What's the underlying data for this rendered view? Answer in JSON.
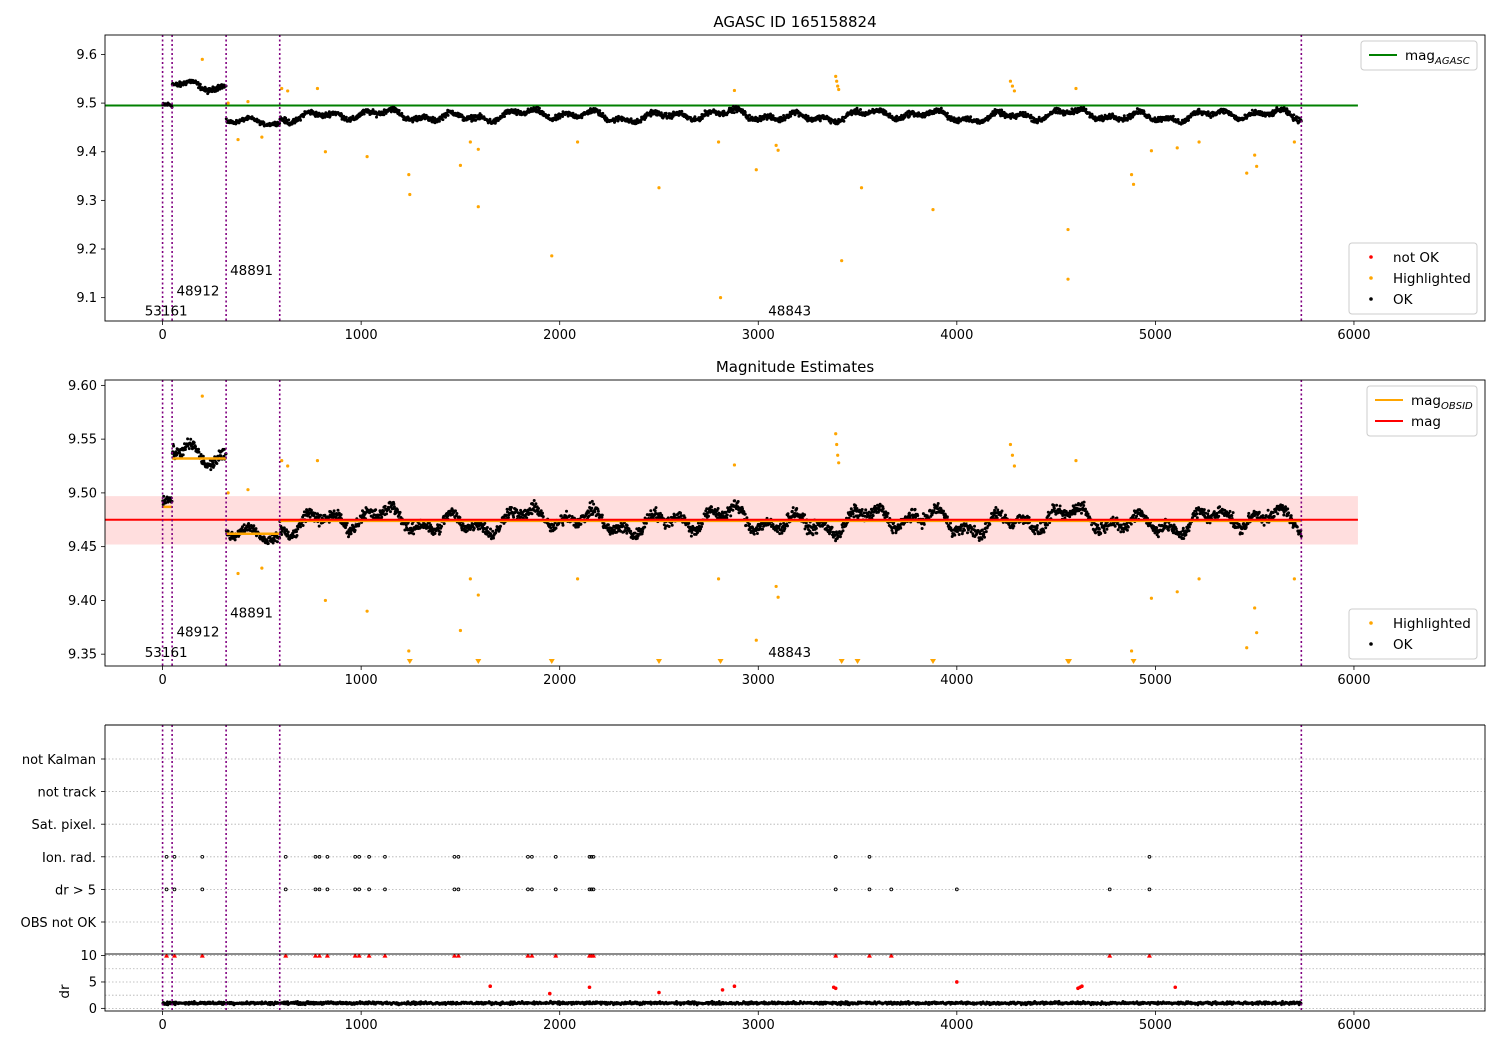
{
  "figure": {
    "vlines": [
      0,
      48,
      320,
      590,
      5735
    ],
    "vline_color": "#800080",
    "colors": {
      "ok": "#000000",
      "highlighted": "#ffa500",
      "not_ok": "#ff0000",
      "agasc": "#008000",
      "mag": "#ff0000",
      "mag_obsid": "#ffa500",
      "band": "#ffcccc"
    }
  },
  "chart_data": [
    {
      "type": "scatter",
      "title": "AGASC ID 165158824",
      "xlabel": "",
      "ylabel": "",
      "xlim": [
        -290,
        6660
      ],
      "ylim": [
        9.052,
        9.64
      ],
      "xticks": [
        0,
        1000,
        2000,
        3000,
        4000,
        5000,
        6000
      ],
      "yticks": [
        9.1,
        9.2,
        9.3,
        9.4,
        9.5,
        9.6
      ],
      "y_decimals": 1,
      "grid": false,
      "legend_top": {
        "position": "upper-right",
        "entries": [
          {
            "label": "mag",
            "sub": "AGASC",
            "type": "line",
            "color": "#008000"
          }
        ]
      },
      "legend_bottom": {
        "position": "lower-right",
        "entries": [
          {
            "label": "not OK",
            "type": "dot",
            "color": "#ff0000"
          },
          {
            "label": "Highlighted",
            "type": "dot",
            "color": "#ffa500"
          },
          {
            "label": "OK",
            "type": "dot",
            "color": "#000000"
          }
        ]
      },
      "hlines": [
        {
          "y": 9.495,
          "x0": -290,
          "x1": 6020,
          "color": "#008000",
          "label": "mag AGASC"
        }
      ],
      "obsid_labels": [
        {
          "text": "53161",
          "x": -90,
          "y": 9.072
        },
        {
          "text": "48912",
          "x": 70,
          "y": 9.113
        },
        {
          "text": "48891",
          "x": 340,
          "y": 9.155
        },
        {
          "text": "48843",
          "x": 3050,
          "y": 9.072
        }
      ],
      "ok_segments": [
        {
          "x0": 0,
          "x1": 48,
          "y": 9.49,
          "spread": 0.012
        },
        {
          "x0": 48,
          "x1": 320,
          "y": 9.532,
          "spread": 0.015
        },
        {
          "x0": 320,
          "x1": 590,
          "y": 9.462,
          "spread": 0.01
        },
        {
          "x0": 590,
          "x1": 5735,
          "y": 9.474,
          "spread": 0.015
        }
      ],
      "highlighted_points": [
        [
          200,
          9.59
        ],
        [
          330,
          9.5
        ],
        [
          380,
          9.425
        ],
        [
          430,
          9.503
        ],
        [
          500,
          9.43
        ],
        [
          600,
          9.53
        ],
        [
          630,
          9.525
        ],
        [
          780,
          9.53
        ],
        [
          820,
          9.4
        ],
        [
          1030,
          9.39
        ],
        [
          1240,
          9.353
        ],
        [
          1245,
          9.312
        ],
        [
          1500,
          9.372
        ],
        [
          1550,
          9.42
        ],
        [
          1590,
          9.405
        ],
        [
          1590,
          9.287
        ],
        [
          1960,
          9.186
        ],
        [
          2090,
          9.42
        ],
        [
          2500,
          9.326
        ],
        [
          2800,
          9.42
        ],
        [
          2810,
          9.1
        ],
        [
          2880,
          9.526
        ],
        [
          2990,
          9.363
        ],
        [
          3090,
          9.413
        ],
        [
          3100,
          9.403
        ],
        [
          3390,
          9.555
        ],
        [
          3395,
          9.545
        ],
        [
          3400,
          9.535
        ],
        [
          3405,
          9.528
        ],
        [
          3420,
          9.176
        ],
        [
          3520,
          9.326
        ],
        [
          3880,
          9.281
        ],
        [
          4270,
          9.545
        ],
        [
          4280,
          9.535
        ],
        [
          4290,
          9.525
        ],
        [
          4560,
          9.24
        ],
        [
          4560,
          9.138
        ],
        [
          4600,
          9.53
        ],
        [
          4880,
          9.353
        ],
        [
          4890,
          9.333
        ],
        [
          4980,
          9.402
        ],
        [
          5110,
          9.408
        ],
        [
          5220,
          9.42
        ],
        [
          5460,
          9.356
        ],
        [
          5500,
          9.393
        ],
        [
          5510,
          9.37
        ],
        [
          5700,
          9.42
        ]
      ],
      "not_ok_points": []
    },
    {
      "type": "scatter",
      "title": "Magnitude Estimates",
      "xlabel": "",
      "ylabel": "",
      "xlim": [
        -290,
        6660
      ],
      "ylim": [
        9.339,
        9.605
      ],
      "xticks": [
        0,
        1000,
        2000,
        3000,
        4000,
        5000,
        6000
      ],
      "yticks": [
        9.35,
        9.4,
        9.45,
        9.5,
        9.55,
        9.6
      ],
      "y_decimals": 2,
      "grid": false,
      "legend_top": {
        "position": "upper-right",
        "entries": [
          {
            "label": "mag",
            "sub": "OBSID",
            "type": "line",
            "color": "#ffa500"
          },
          {
            "label": "mag",
            "sub": "",
            "type": "line",
            "color": "#ff0000"
          }
        ]
      },
      "legend_bottom": {
        "position": "lower-right",
        "entries": [
          {
            "label": "Highlighted",
            "type": "dot",
            "color": "#ffa500"
          },
          {
            "label": "OK",
            "type": "dot",
            "color": "#000000"
          }
        ]
      },
      "band": {
        "y0": 9.452,
        "y1": 9.497,
        "x0": -290,
        "x1": 6020,
        "color": "#ffcccc"
      },
      "hlines": [
        {
          "y": 9.475,
          "x0": -290,
          "x1": 6020,
          "color": "#ff0000",
          "label": "mag"
        }
      ],
      "obsid_segments": [
        {
          "x0": 0,
          "x1": 48,
          "y": 9.487
        },
        {
          "x0": 48,
          "x1": 320,
          "y": 9.532
        },
        {
          "x0": 320,
          "x1": 590,
          "y": 9.462
        },
        {
          "x0": 590,
          "x1": 5735,
          "y": 9.474
        }
      ],
      "obsid_labels": [
        {
          "text": "53161",
          "x": -90,
          "y": 9.351
        },
        {
          "text": "48912",
          "x": 70,
          "y": 9.37
        },
        {
          "text": "48891",
          "x": 340,
          "y": 9.388
        },
        {
          "text": "48843",
          "x": 3050,
          "y": 9.351
        }
      ],
      "ok_segments": [
        {
          "x0": 0,
          "x1": 48,
          "y": 9.487,
          "spread": 0.012
        },
        {
          "x0": 48,
          "x1": 320,
          "y": 9.532,
          "spread": 0.015
        },
        {
          "x0": 320,
          "x1": 590,
          "y": 9.462,
          "spread": 0.01
        },
        {
          "x0": 590,
          "x1": 5735,
          "y": 9.474,
          "spread": 0.015
        }
      ],
      "highlighted_points": [
        [
          200,
          9.59
        ],
        [
          330,
          9.5
        ],
        [
          380,
          9.425
        ],
        [
          430,
          9.503
        ],
        [
          500,
          9.43
        ],
        [
          600,
          9.53
        ],
        [
          630,
          9.525
        ],
        [
          780,
          9.53
        ],
        [
          820,
          9.4
        ],
        [
          1030,
          9.39
        ],
        [
          1240,
          9.353
        ],
        [
          1500,
          9.372
        ],
        [
          1550,
          9.42
        ],
        [
          1590,
          9.405
        ],
        [
          2090,
          9.42
        ],
        [
          2800,
          9.42
        ],
        [
          2880,
          9.526
        ],
        [
          2990,
          9.363
        ],
        [
          3090,
          9.413
        ],
        [
          3100,
          9.403
        ],
        [
          3390,
          9.555
        ],
        [
          3395,
          9.545
        ],
        [
          3400,
          9.535
        ],
        [
          3405,
          9.528
        ],
        [
          4270,
          9.545
        ],
        [
          4280,
          9.535
        ],
        [
          4290,
          9.525
        ],
        [
          4600,
          9.53
        ],
        [
          4880,
          9.353
        ],
        [
          4980,
          9.402
        ],
        [
          5110,
          9.408
        ],
        [
          5220,
          9.42
        ],
        [
          5460,
          9.356
        ],
        [
          5500,
          9.393
        ],
        [
          5510,
          9.37
        ],
        [
          5700,
          9.42
        ]
      ],
      "below_range_markers": [
        1245,
        1590,
        1960,
        2500,
        2810,
        3420,
        3500,
        3880,
        4560,
        4565,
        4890
      ]
    },
    {
      "type": "scatter",
      "title": "",
      "xlabel": "",
      "ylabel": "",
      "xlim": [
        -290,
        6660
      ],
      "categories": [
        "not Kalman",
        "not track",
        "Sat. pixel.",
        "Ion. rad.",
        "dr > 5",
        "OBS not OK"
      ],
      "flag_points": {
        "Ion. rad.": [
          20,
          60,
          200,
          620,
          770,
          790,
          830,
          970,
          990,
          1040,
          1120,
          1470,
          1490,
          1840,
          1860,
          1980,
          2150,
          2160,
          2170,
          3390,
          3560,
          4970
        ],
        "dr > 5": [
          20,
          60,
          200,
          620,
          770,
          790,
          830,
          970,
          990,
          1040,
          1120,
          1470,
          1490,
          1840,
          1860,
          1980,
          2150,
          2160,
          2170,
          3390,
          3560,
          3670,
          4000,
          4770,
          4970
        ]
      },
      "grid": true
    },
    {
      "type": "scatter",
      "title": "",
      "xlabel": "",
      "ylabel": "dr",
      "xlim": [
        -290,
        6660
      ],
      "ylim": [
        -0.5,
        10.3
      ],
      "xticks": [
        0,
        1000,
        2000,
        3000,
        4000,
        5000,
        6000
      ],
      "yticks": [
        0,
        5,
        10
      ],
      "grid": true,
      "ok_baseline": {
        "x0": 0,
        "x1": 5735,
        "y": 1.0,
        "spread": 0.4
      },
      "not_ok_points": [
        [
          1650,
          4.2
        ],
        [
          1950,
          2.8
        ],
        [
          2150,
          4.0
        ],
        [
          2500,
          3.0
        ],
        [
          2820,
          3.5
        ],
        [
          2880,
          4.2
        ],
        [
          3380,
          4.0
        ],
        [
          3390,
          3.8
        ],
        [
          4000,
          5.0
        ],
        [
          4610,
          3.8
        ],
        [
          4620,
          4.0
        ],
        [
          4630,
          4.2
        ],
        [
          5100,
          4.0
        ]
      ],
      "capped_points": [
        20,
        60,
        200,
        620,
        770,
        790,
        830,
        970,
        990,
        1040,
        1120,
        1470,
        1490,
        1840,
        1860,
        1980,
        2150,
        2160,
        2170,
        3390,
        3560,
        3670,
        4770,
        4970
      ]
    }
  ]
}
